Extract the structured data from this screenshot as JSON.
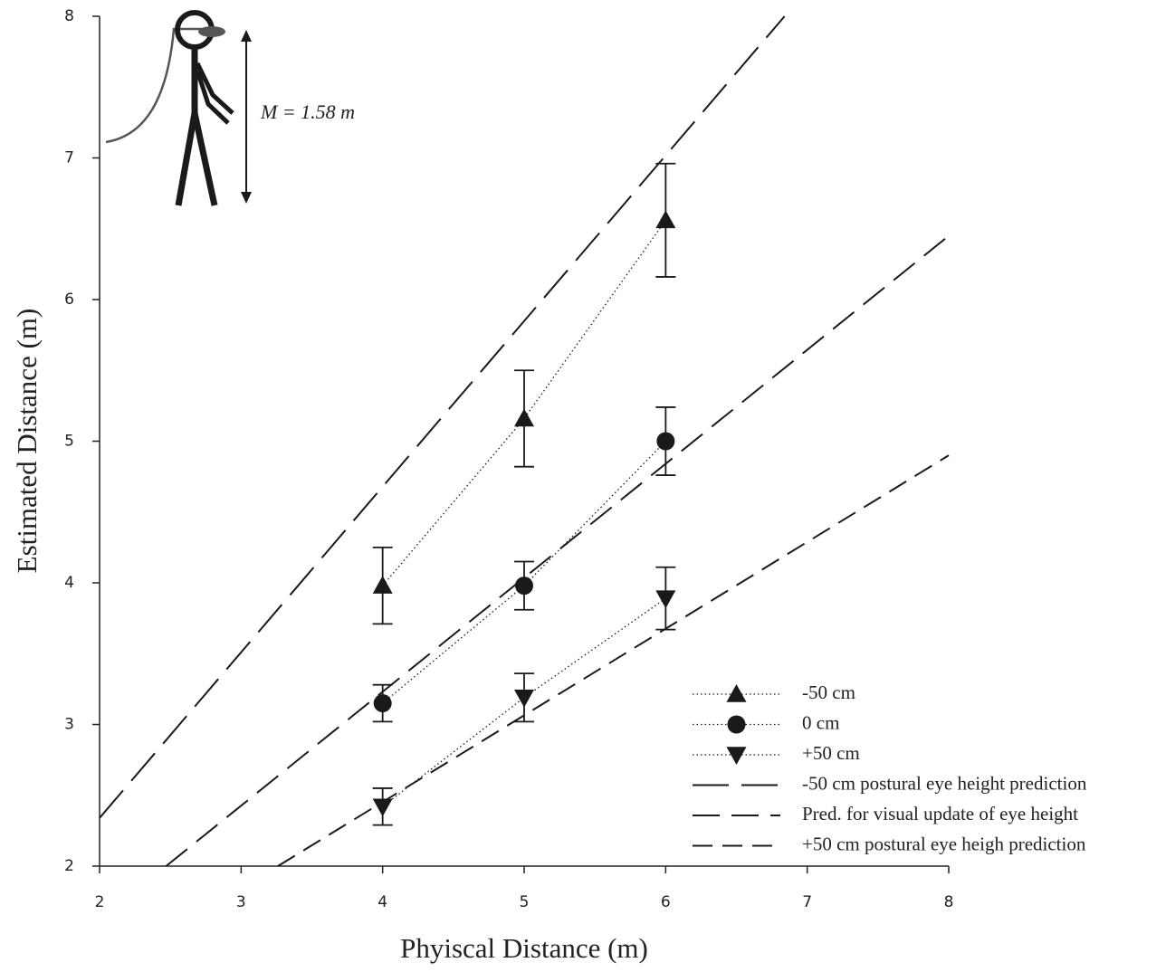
{
  "chart_data": {
    "type": "line",
    "xlabel": "Phyiscal Distance (m)",
    "ylabel": "Estimated Distance (m)",
    "annotation": "M = 1.58 m",
    "xlim": [
      2,
      8
    ],
    "ylim": [
      2,
      8
    ],
    "xticks": [
      2,
      3,
      4,
      5,
      6,
      7,
      8
    ],
    "yticks": [
      2,
      3,
      4,
      5,
      6,
      7,
      8
    ],
    "legend": "lower right",
    "series": [
      {
        "name": "-50 cm",
        "color": "#1a1a1a",
        "marker": "triangle-up",
        "line": "dotted",
        "x": [
          4,
          5,
          6
        ],
        "values": [
          3.98,
          5.16,
          6.56
        ],
        "errors": [
          0.27,
          0.34,
          0.4
        ]
      },
      {
        "name": "0 cm",
        "color": "#1a1a1a",
        "marker": "circle",
        "line": "dotted",
        "x": [
          4,
          5,
          6
        ],
        "values": [
          3.15,
          3.98,
          5.0
        ],
        "errors": [
          0.13,
          0.17,
          0.24
        ]
      },
      {
        "name": "+50 cm",
        "color": "#1a1a1a",
        "marker": "triangle-down",
        "line": "dotted",
        "x": [
          4,
          5,
          6
        ],
        "values": [
          2.42,
          3.19,
          3.89
        ],
        "errors": [
          0.13,
          0.17,
          0.22
        ]
      },
      {
        "name": "-50 cm postural eye height prediction",
        "color": "#1a1a1a",
        "line": "long-dash",
        "x": [
          2,
          6.84
        ],
        "values": [
          2.34,
          8
        ]
      },
      {
        "name": "Pred. for visual update of eye height",
        "color": "#1a1a1a",
        "line": "dash",
        "x": [
          2.47,
          8
        ],
        "values": [
          2,
          6.45
        ]
      },
      {
        "name": "+50 cm postural eye heigh prediction",
        "color": "#1a1a1a",
        "line": "short-dash",
        "x": [
          3.26,
          8
        ],
        "values": [
          2,
          4.9
        ]
      }
    ]
  }
}
